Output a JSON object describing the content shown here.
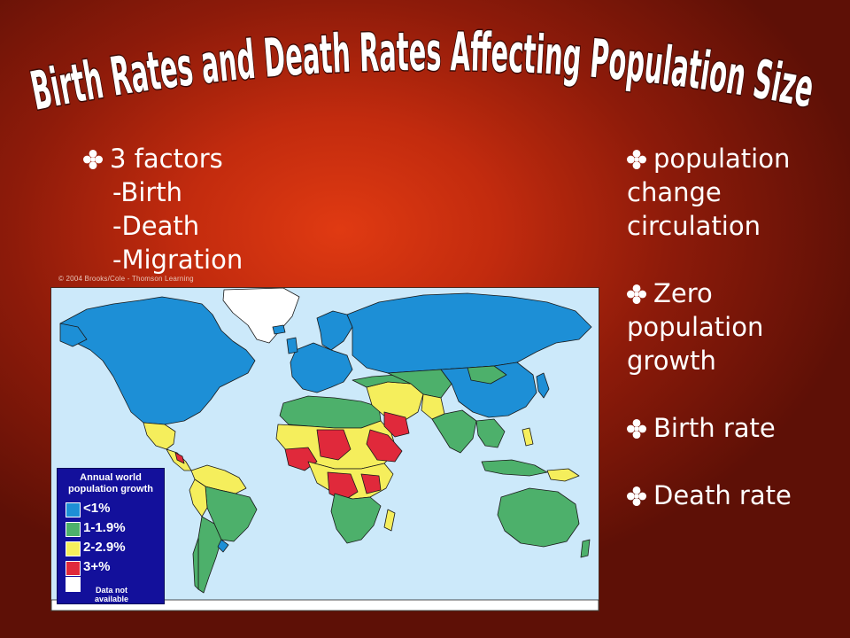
{
  "title": "Birth Rates and Death Rates Affecting Population Size",
  "left_list": {
    "heading": "3 factors",
    "items": [
      "-Birth",
      "-Death",
      "-Migration"
    ]
  },
  "right_list": {
    "items": [
      {
        "lines": [
          "population",
          "change",
          "circulation"
        ]
      },
      {
        "lines": [
          "Zero",
          "population",
          "growth"
        ]
      },
      {
        "lines": [
          "Birth rate"
        ]
      },
      {
        "lines": [
          "Death rate"
        ]
      }
    ]
  },
  "map": {
    "credit": "© 2004 Brooks/Cole - Thomson Learning",
    "legend": {
      "title_line1": "Annual world",
      "title_line2": "population growth",
      "categories": [
        {
          "label": "<1%",
          "color": "#1d8fd6"
        },
        {
          "label": "1-1.9%",
          "color": "#4db06b"
        },
        {
          "label": "2-2.9%",
          "color": "#f5ee5c"
        },
        {
          "label": "3+%",
          "color": "#e0293b"
        },
        {
          "label": "",
          "color": "#ffffff"
        }
      ],
      "na_line1": "Data not",
      "na_line2": "available"
    },
    "colors": {
      "ocean": "#cce9fa",
      "border": "#1a1a1a"
    }
  },
  "colors": {
    "bullet": "#ffffff",
    "title_fill": "#ffffff",
    "title_stroke": "#3a0a05"
  }
}
